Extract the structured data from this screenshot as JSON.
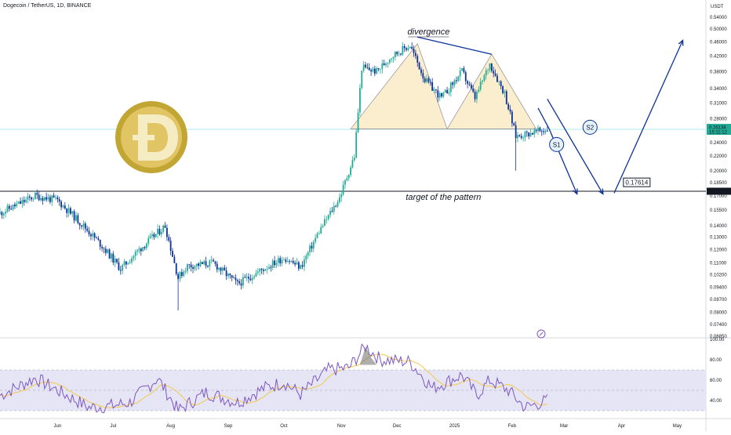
{
  "header": {
    "symbol_title": "Dogecoin / TetherUS, 1D, BINANCE"
  },
  "price_axis": {
    "currency": "USDT",
    "ticks": [
      "0.54000",
      "0.50000",
      "0.46000",
      "0.42000",
      "0.38000",
      "0.34000",
      "0.31000",
      "0.28000",
      "0.24000",
      "0.22000",
      "0.20000",
      "0.18500",
      "0.17000",
      "0.15500",
      "0.14000",
      "0.13000",
      "0.12000",
      "0.11000",
      "0.10200",
      "0.09400",
      "0.08700",
      "0.08000",
      "0.07400",
      "0.06850"
    ],
    "current_price": "0.26138",
    "countdown": "15:11:12",
    "support_price": "0.17511",
    "current_color": "#22ab94",
    "support_color": "#131722"
  },
  "time_axis": {
    "labels": [
      "Jun",
      "Jul",
      "Aug",
      "Sep",
      "Oct",
      "Nov",
      "Dec",
      "2025",
      "Feb",
      "Mar",
      "Apr",
      "May"
    ]
  },
  "annotations": {
    "divergence": "divergence",
    "target": "target of the pattern",
    "s1": "S1",
    "s2": "S2",
    "target_price": "0.17614"
  },
  "rsi_axis": {
    "ticks": [
      "100.00",
      "80.00",
      "60.00",
      "40.00"
    ]
  },
  "colors": {
    "up": "#22ab94",
    "down": "#0c3299",
    "pattern_fill": "#fbeecf",
    "rsi_band": "#e5e5f5",
    "rsi_line": "#7e57c2",
    "rsi_ma": "#f2c94c",
    "arrow": "#0c3299"
  },
  "chart_data": [
    {
      "type": "candlestick",
      "title": "Dogecoin / TetherUS, 1D, BINANCE",
      "y_scale": "log",
      "ylim": [
        0.0685,
        0.54
      ],
      "x_range": [
        "2024-05-01",
        "2025-05-08"
      ],
      "pattern_base": 0.262,
      "support_level": 0.17511,
      "current_price": 0.26138,
      "anchors": [
        [
          "2024-05-01",
          0.152
        ],
        [
          "2024-05-20",
          0.17
        ],
        [
          "2024-06-01",
          0.165
        ],
        [
          "2024-06-15",
          0.14
        ],
        [
          "2024-06-25",
          0.123
        ],
        [
          "2024-07-05",
          0.106
        ],
        [
          "2024-07-15",
          0.12
        ],
        [
          "2024-07-29",
          0.14
        ],
        [
          "2024-08-05",
          0.1
        ],
        [
          "2024-08-10",
          0.108
        ],
        [
          "2024-08-24",
          0.11
        ],
        [
          "2024-09-06",
          0.096
        ],
        [
          "2024-09-20",
          0.106
        ],
        [
          "2024-10-01",
          0.114
        ],
        [
          "2024-10-10",
          0.107
        ],
        [
          "2024-10-20",
          0.135
        ],
        [
          "2024-10-31",
          0.168
        ],
        [
          "2024-11-08",
          0.22
        ],
        [
          "2024-11-12",
          0.39
        ],
        [
          "2024-11-20",
          0.38
        ],
        [
          "2024-11-28",
          0.42
        ],
        [
          "2024-12-08",
          0.45
        ],
        [
          "2024-12-16",
          0.36
        ],
        [
          "2024-12-25",
          0.32
        ],
        [
          "2025-01-05",
          0.38
        ],
        [
          "2025-01-12",
          0.32
        ],
        [
          "2025-01-20",
          0.4
        ],
        [
          "2025-01-28",
          0.33
        ],
        [
          "2025-02-03",
          0.25
        ],
        [
          "2025-02-10",
          0.255
        ],
        [
          "2025-02-20",
          0.261
        ]
      ]
    },
    {
      "type": "line",
      "name": "RSI",
      "ylim": [
        20,
        100
      ],
      "bands": [
        30,
        50,
        70
      ],
      "anchors": [
        [
          "2024-05-01",
          45
        ],
        [
          "2024-05-20",
          62
        ],
        [
          "2024-06-01",
          50
        ],
        [
          "2024-06-18",
          33
        ],
        [
          "2024-07-01",
          35
        ],
        [
          "2024-07-10",
          38
        ],
        [
          "2024-07-25",
          62
        ],
        [
          "2024-08-05",
          30
        ],
        [
          "2024-08-20",
          48
        ],
        [
          "2024-09-06",
          38
        ],
        [
          "2024-09-20",
          52
        ],
        [
          "2024-10-01",
          58
        ],
        [
          "2024-10-10",
          46
        ],
        [
          "2024-10-25",
          70
        ],
        [
          "2024-11-05",
          72
        ],
        [
          "2024-11-14",
          93
        ],
        [
          "2024-11-22",
          80
        ],
        [
          "2024-12-08",
          78
        ],
        [
          "2024-12-20",
          52
        ],
        [
          "2025-01-05",
          65
        ],
        [
          "2025-01-13",
          45
        ],
        [
          "2025-01-20",
          60
        ],
        [
          "2025-01-30",
          50
        ],
        [
          "2025-02-08",
          33
        ],
        [
          "2025-02-20",
          40
        ]
      ]
    }
  ]
}
